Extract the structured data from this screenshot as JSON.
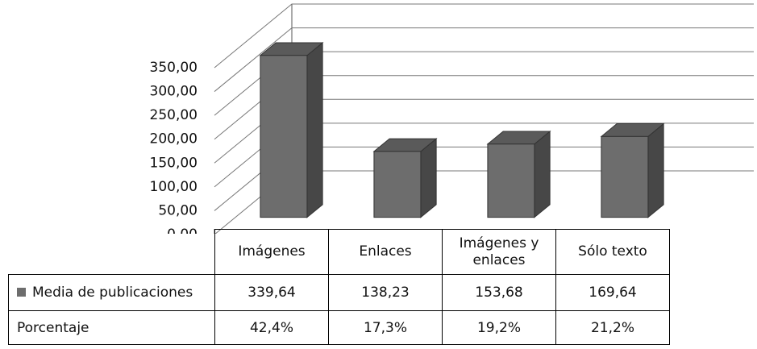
{
  "chart_data": {
    "type": "bar3d",
    "categories": [
      "Imágenes",
      "Enlaces",
      "Imágenes y enlaces",
      "Sólo texto"
    ],
    "series": [
      {
        "name": "Media de publicaciones",
        "color": "#6d6d6d",
        "values": [
          339.64,
          138.23,
          153.68,
          169.64
        ],
        "value_labels": [
          "339,64",
          "138,23",
          "153,68",
          "169,64"
        ]
      }
    ],
    "percentages": {
      "name": "Porcentaje",
      "values": [
        42.4,
        17.3,
        19.2,
        21.2
      ],
      "value_labels": [
        "42,4%",
        "17,3%",
        "19,2%",
        "21,2%"
      ]
    },
    "ylim": [
      0,
      350
    ],
    "yticks": [
      {
        "value": 0,
        "label": "0,00"
      },
      {
        "value": 50,
        "label": "50,00"
      },
      {
        "value": 100,
        "label": "100,00"
      },
      {
        "value": 150,
        "label": "150,00"
      },
      {
        "value": 200,
        "label": "200,00"
      },
      {
        "value": 250,
        "label": "250,00"
      },
      {
        "value": 300,
        "label": "300,00"
      },
      {
        "value": 350,
        "label": "350,00"
      }
    ],
    "grid": true
  }
}
